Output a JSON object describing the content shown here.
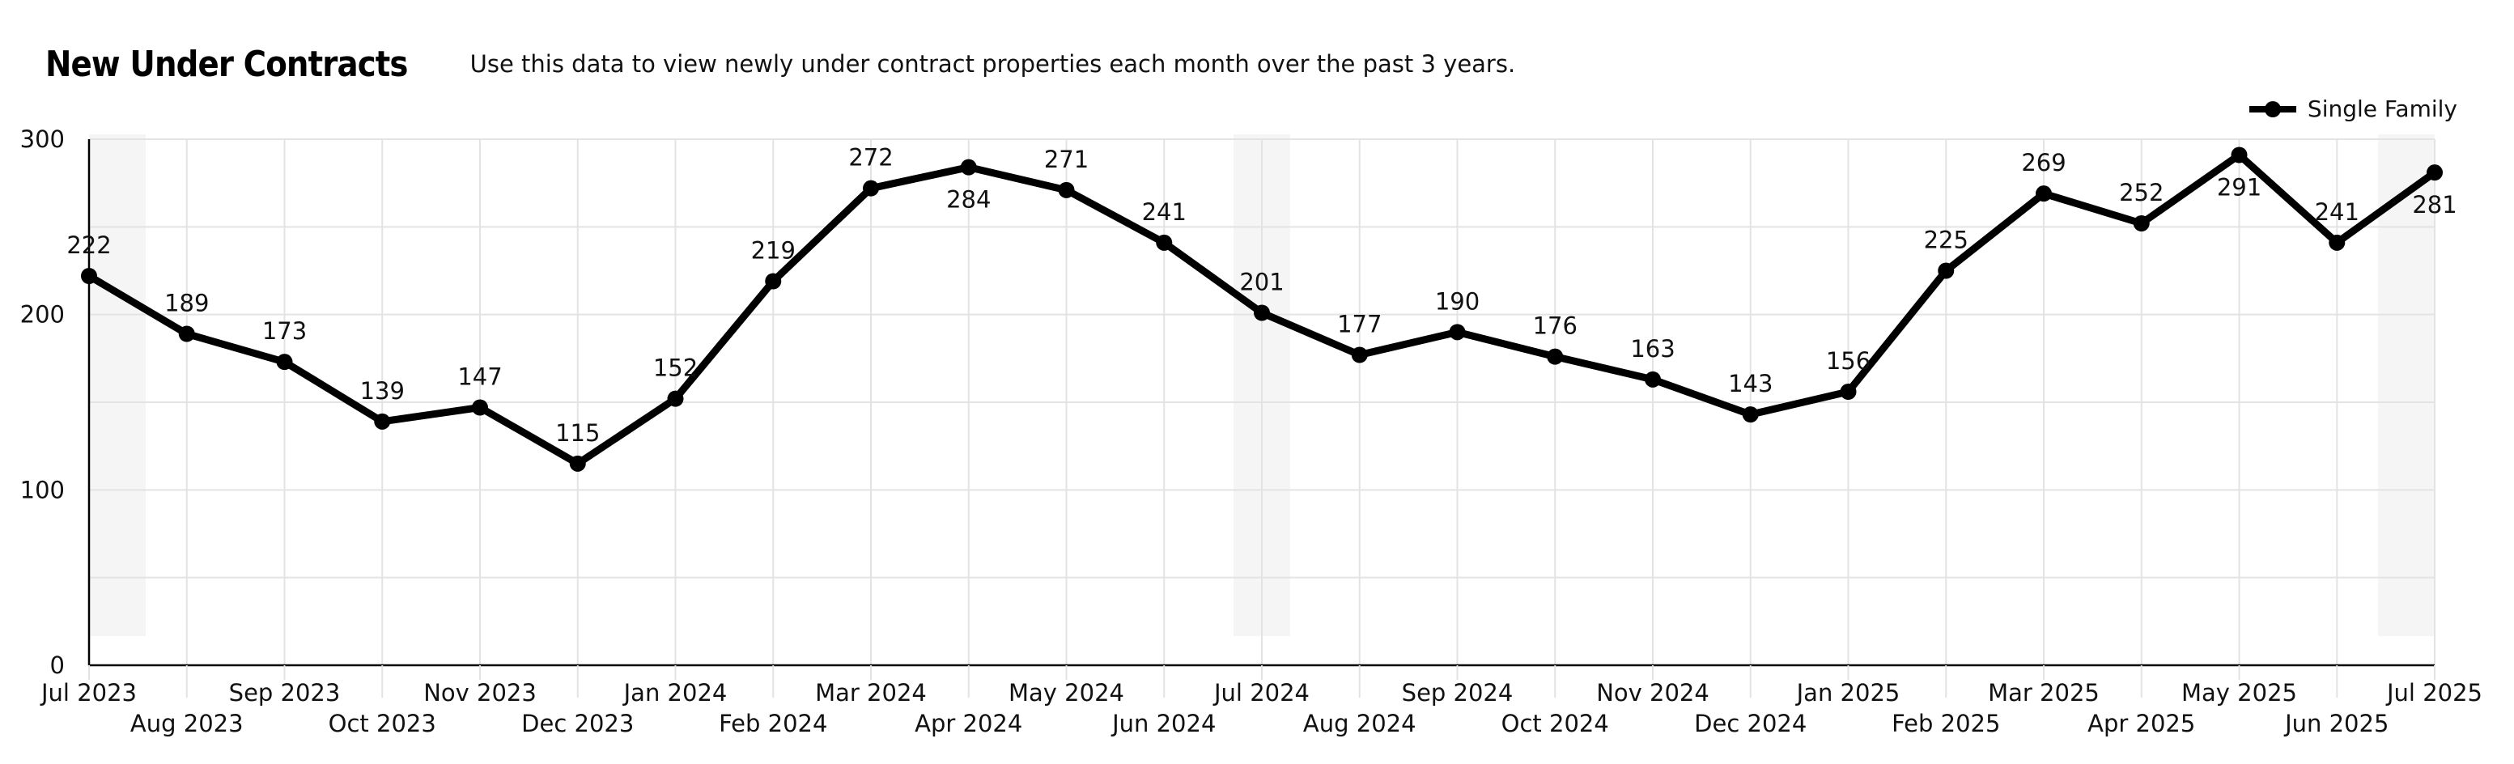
{
  "header": {
    "title": "New Under Contracts",
    "subtitle": "Use this data to view newly under contract properties each month over the past 3 years."
  },
  "chart_data": {
    "type": "line",
    "title": "New Under Contracts",
    "subtitle": "Use this data to view newly under contract properties each month over the past 3 years.",
    "xlabel": "",
    "ylabel": "",
    "ylim": [
      0,
      300
    ],
    "yticks": [
      0,
      100,
      200,
      300
    ],
    "grid": true,
    "legend_position": "top-right",
    "categories": [
      "Jul 2023",
      "Aug 2023",
      "Sep 2023",
      "Oct 2023",
      "Nov 2023",
      "Dec 2023",
      "Jan 2024",
      "Feb 2024",
      "Mar 2024",
      "Apr 2024",
      "May 2024",
      "Jun 2024",
      "Jul 2024",
      "Aug 2024",
      "Sep 2024",
      "Oct 2024",
      "Nov 2024",
      "Dec 2024",
      "Jan 2025",
      "Feb 2025",
      "Mar 2025",
      "Apr 2025",
      "May 2025",
      "Jun 2025",
      "Jul 2025"
    ],
    "series": [
      {
        "name": "Single Family",
        "color": "#000000",
        "values": [
          222,
          189,
          173,
          139,
          147,
          115,
          152,
          219,
          272,
          284,
          271,
          241,
          201,
          177,
          190,
          176,
          163,
          143,
          156,
          225,
          269,
          252,
          291,
          241,
          281
        ]
      }
    ]
  },
  "colors": {
    "line": "#000000",
    "grid": "#e3e3e3",
    "axis": "#000000",
    "highlight_band": "#f5f5f5"
  }
}
